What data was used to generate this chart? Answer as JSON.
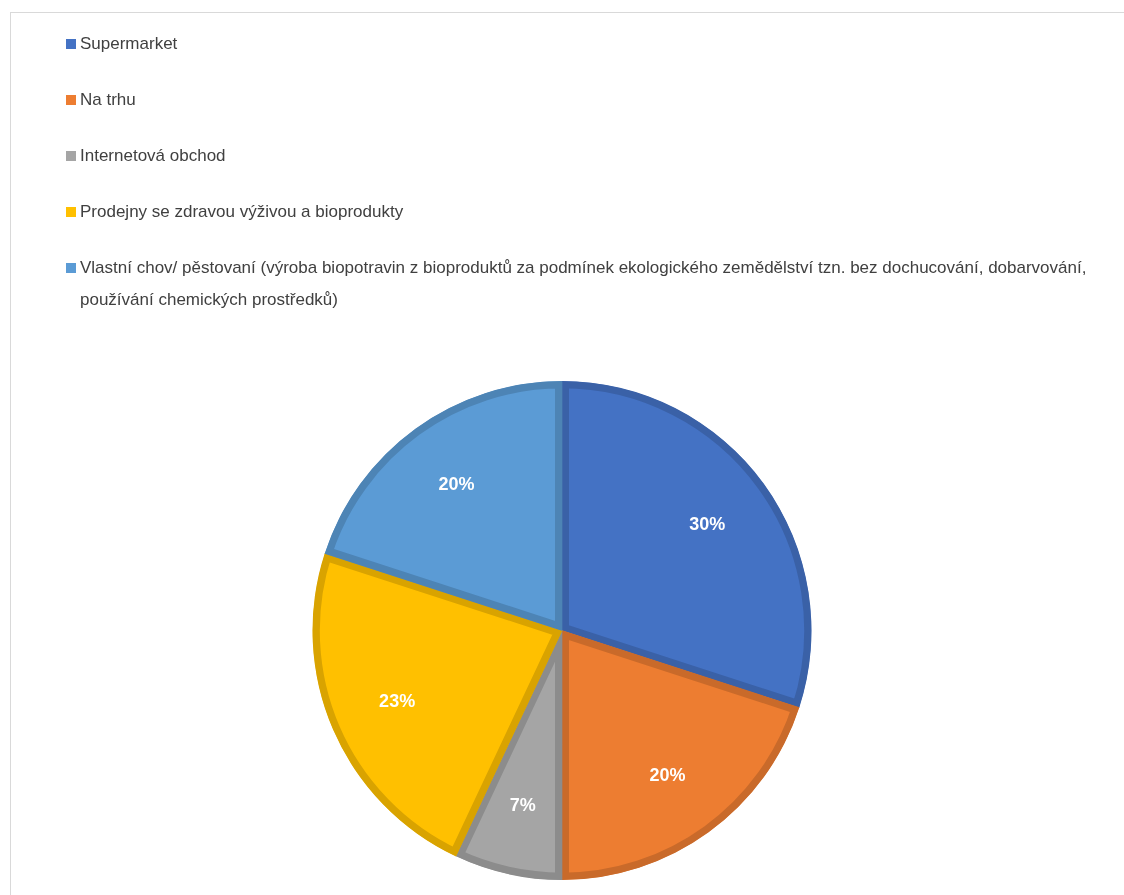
{
  "chart_data": {
    "type": "pie",
    "categories": [
      "Supermarket",
      "Na trhu",
      "Internetová obchod",
      "Prodejny se zdravou výživou a bioprodukty",
      "Vlastní chov/ pěstovaní (výroba biopotravin z bioproduktů za podmínek ekologického zemědělství tzn. bez dochucování, dobarvování, používání chemických prostředků)"
    ],
    "values": [
      30,
      20,
      7,
      23,
      20
    ],
    "colors": [
      "#4472c4",
      "#ed7d31",
      "#a5a5a5",
      "#ffc000",
      "#5b9bd5"
    ],
    "value_labels": [
      "30%",
      "20%",
      "7%",
      "23%",
      "20%"
    ],
    "legend": "top"
  }
}
